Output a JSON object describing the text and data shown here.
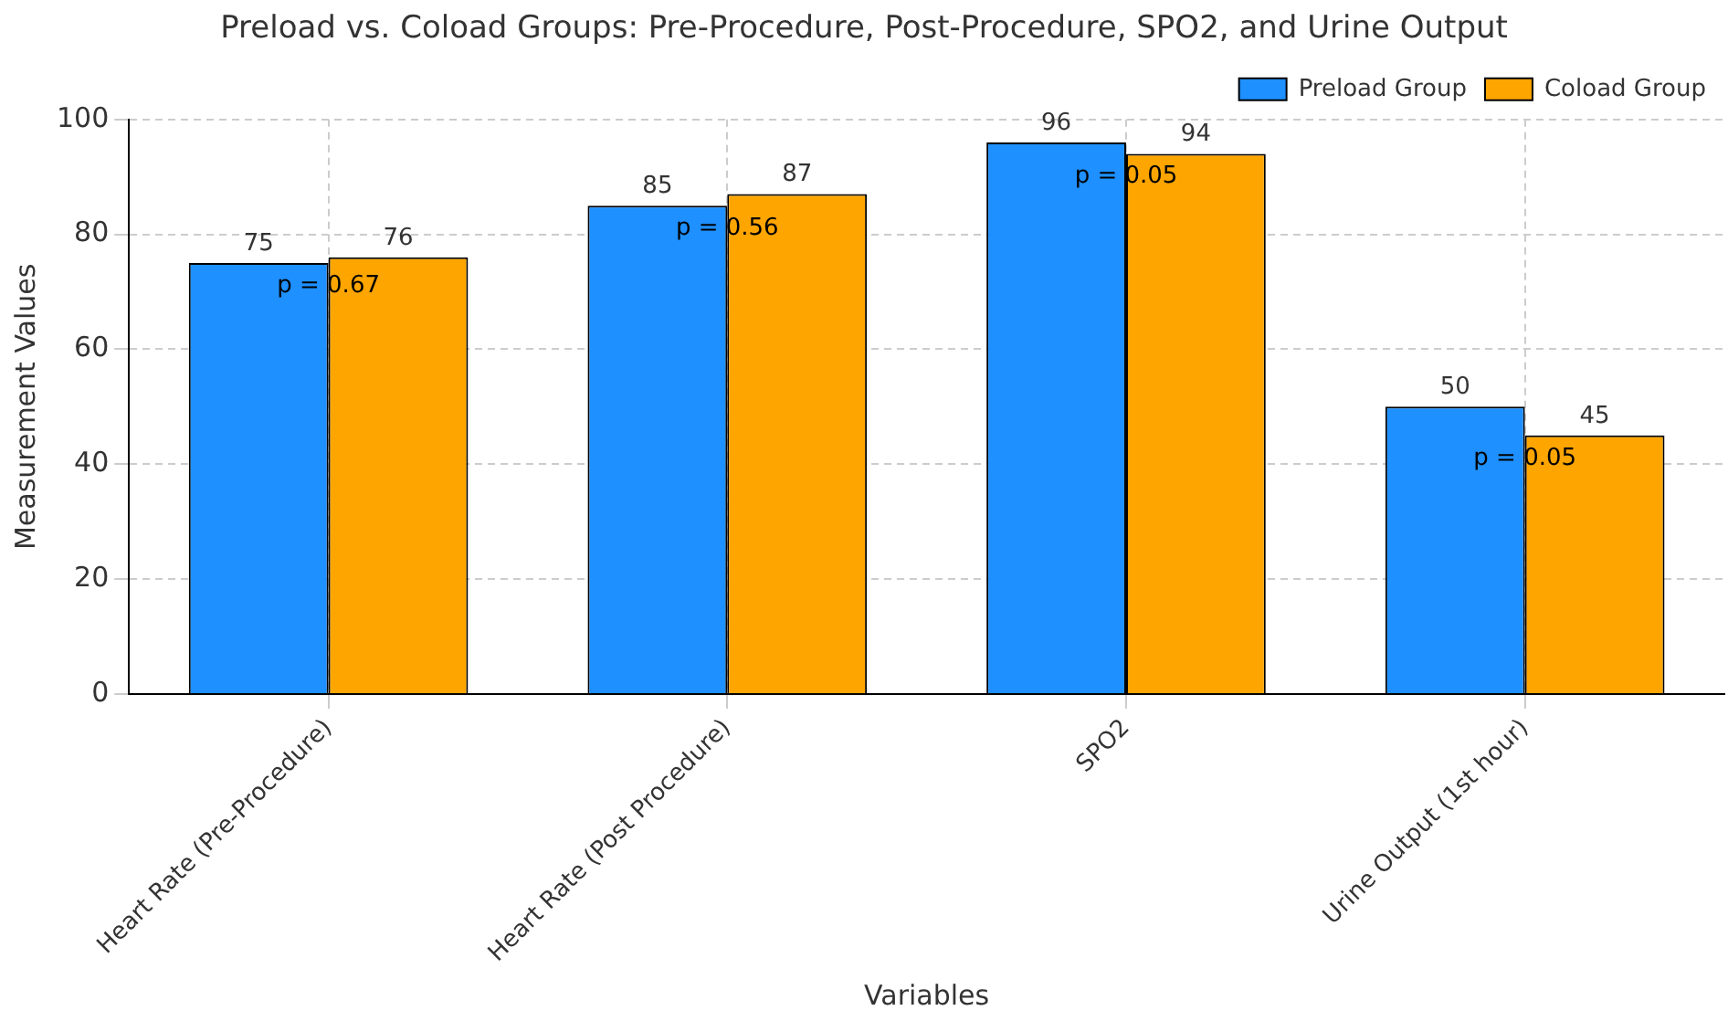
{
  "chart_data": {
    "type": "bar",
    "title": "Preload vs. Coload Groups: Pre-Procedure, Post-Procedure, SPO2, and Urine Output",
    "xlabel": "Variables",
    "ylabel": "Measurement Values",
    "categories": [
      "Heart Rate (Pre-Procedure)",
      "Heart Rate (Post Procedure)",
      "SPO2",
      "Urine Output (1st hour)"
    ],
    "series": [
      {
        "name": "Preload Group",
        "color": "#1e90ff",
        "values": [
          75,
          85,
          96,
          50
        ]
      },
      {
        "name": "Coload Group",
        "color": "#ffa500",
        "values": [
          76,
          87,
          94,
          45
        ]
      }
    ],
    "ylim": [
      0,
      100
    ],
    "yticks": [
      0,
      20,
      40,
      60,
      80,
      100
    ],
    "grid": true,
    "legend": "top right",
    "data_labels": true,
    "annotations": [
      {
        "text": "p = 0.67",
        "x": "Heart Rate (Pre-Procedure)",
        "y": 71
      },
      {
        "text": "p = 0.56",
        "x": "Heart Rate (Post Procedure)",
        "y": 81
      },
      {
        "text": "p = 0.05",
        "x": "SPO2",
        "y": 90
      },
      {
        "text": "p = 0.05",
        "x": "Urine Output (1st hour)",
        "y": 41
      }
    ]
  }
}
